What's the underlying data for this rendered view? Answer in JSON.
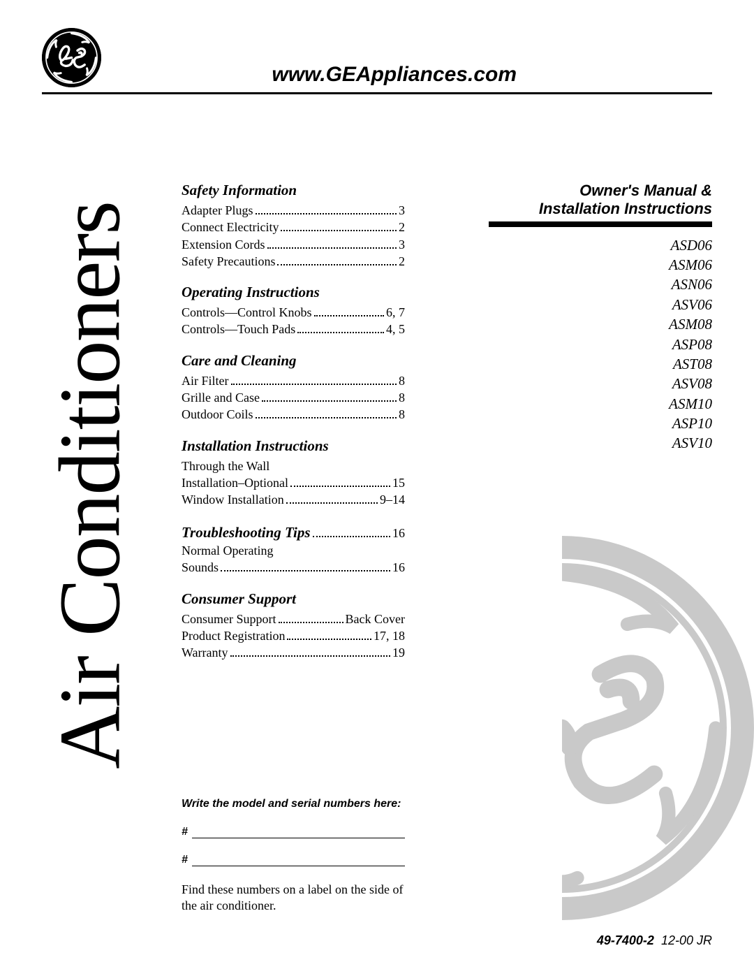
{
  "header": {
    "url": "www.GEAppliances.com",
    "brand": "GE"
  },
  "vertical_title": "Air Conditioners",
  "toc": [
    {
      "heading": "Safety Information",
      "inline_page": null,
      "items": [
        {
          "label": "Adapter Plugs",
          "page": "3"
        },
        {
          "label": "Connect Electricity",
          "page": "2"
        },
        {
          "label": "Extension Cords",
          "page": "3"
        },
        {
          "label": "Safety Precautions",
          "page": "2"
        }
      ]
    },
    {
      "heading": "Operating Instructions",
      "inline_page": null,
      "items": [
        {
          "label": "Controls—Control Knobs",
          "page": "6, 7"
        },
        {
          "label": "Controls—Touch Pads",
          "page": "4, 5"
        }
      ]
    },
    {
      "heading": "Care and Cleaning",
      "inline_page": null,
      "items": [
        {
          "label": "Air Filter",
          "page": "8"
        },
        {
          "label": "Grille and Case",
          "page": "8"
        },
        {
          "label": "Outdoor Coils",
          "page": "8"
        }
      ]
    },
    {
      "heading": "Installation Instructions",
      "inline_page": null,
      "items": [
        {
          "label": "Through the Wall",
          "page": ""
        },
        {
          "label": "Installation–Optional",
          "page": "15"
        },
        {
          "label": "Window Installation",
          "page": "9–14"
        }
      ]
    },
    {
      "heading": "Troubleshooting Tips",
      "inline_page": "16",
      "items": [
        {
          "label": "Normal Operating",
          "page": ""
        },
        {
          "label": "Sounds",
          "page": "16"
        }
      ]
    },
    {
      "heading": "Consumer Support",
      "inline_page": null,
      "items": [
        {
          "label": "Consumer Support",
          "page": "Back Cover"
        },
        {
          "label": "Product Registration",
          "page": "17, 18"
        },
        {
          "label": "Warranty",
          "page": "19"
        }
      ]
    }
  ],
  "right": {
    "title_line1": "Owner's Manual &",
    "title_line2": "Installation Instructions",
    "models": [
      "ASD06",
      "ASM06",
      "ASN06",
      "ASV06",
      "ASM08",
      "ASP08",
      "AST08",
      "ASV08",
      "ASM10",
      "ASP10",
      "ASV10"
    ]
  },
  "bottom": {
    "write_label": "Write the model and serial numbers here:",
    "hash": "#",
    "find_text": "Find these numbers on a label on the side of the air conditioner."
  },
  "doc_code": {
    "bold": "49-7400-2",
    "reg": "12-00 JR"
  },
  "colors": {
    "logo_grey": "#c9c9c9",
    "text": "#000000",
    "background": "#ffffff"
  }
}
